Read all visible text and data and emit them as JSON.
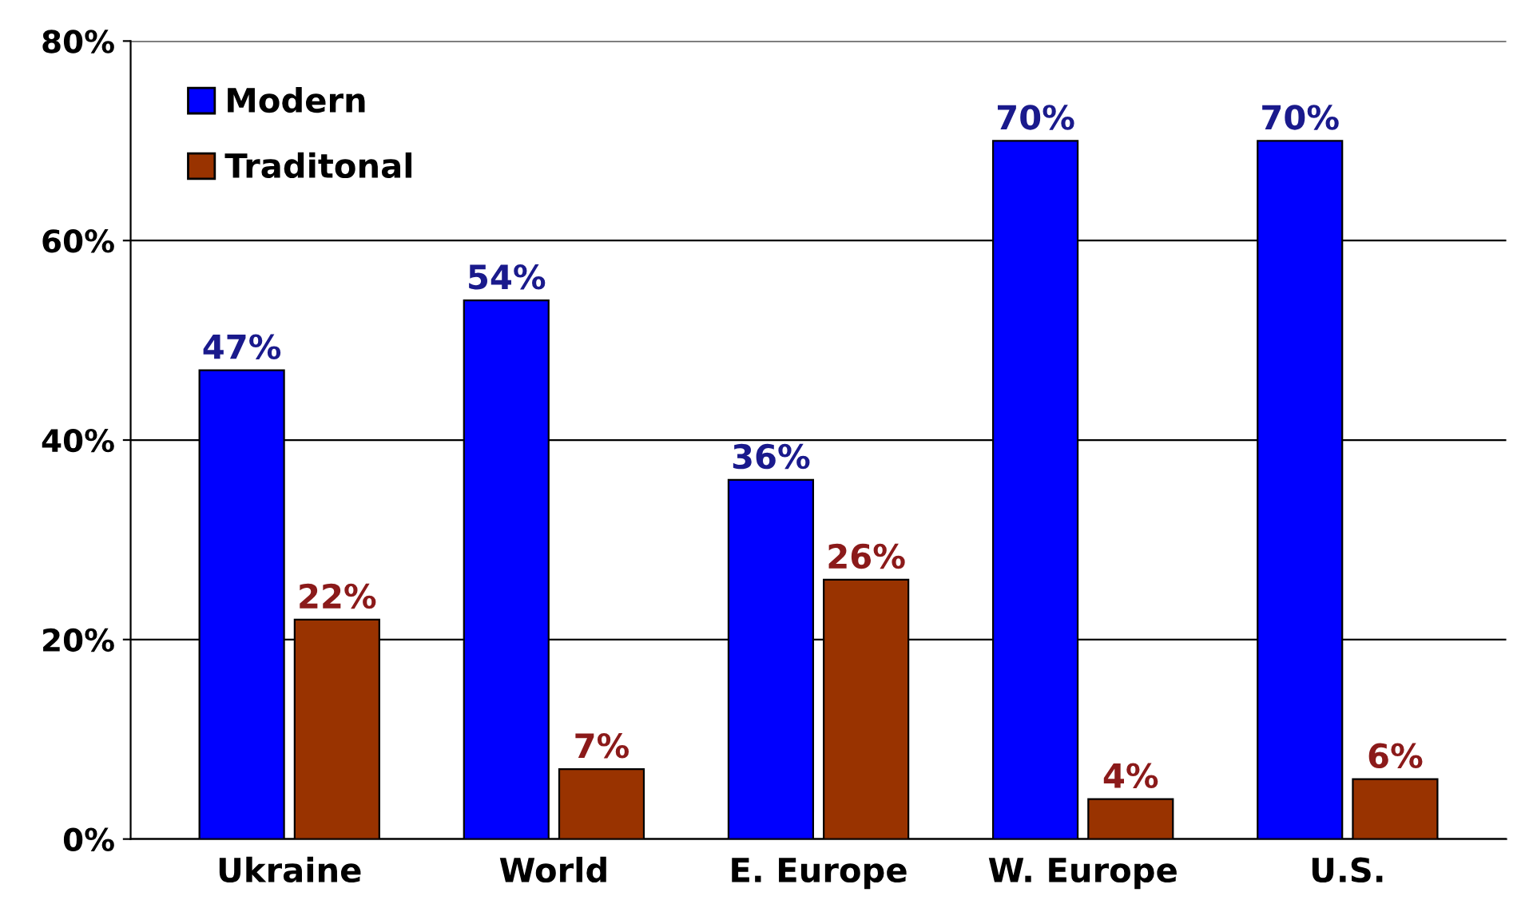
{
  "chart_data": {
    "type": "bar",
    "categories": [
      "Ukraine",
      "World",
      "E. Europe",
      "W. Europe",
      "U.S."
    ],
    "series": [
      {
        "name": "Modern",
        "color": "#0000ff",
        "values": [
          47,
          54,
          36,
          70,
          70
        ],
        "value_labels": [
          "47%",
          "54%",
          "36%",
          "70%",
          "70%"
        ]
      },
      {
        "name": "Traditonal",
        "color": "#993300",
        "values": [
          22,
          7,
          26,
          4,
          6
        ],
        "value_labels": [
          "22%",
          "7%",
          "26%",
          "4%",
          "6%"
        ]
      }
    ],
    "ylim": [
      0,
      80
    ],
    "yticks": [
      {
        "value": 0,
        "label": "0%"
      },
      {
        "value": 20,
        "label": "20%"
      },
      {
        "value": 40,
        "label": "40%"
      },
      {
        "value": 60,
        "label": "60%"
      },
      {
        "value": 80,
        "label": "80%"
      }
    ],
    "grid": "y",
    "legend": "top left"
  }
}
